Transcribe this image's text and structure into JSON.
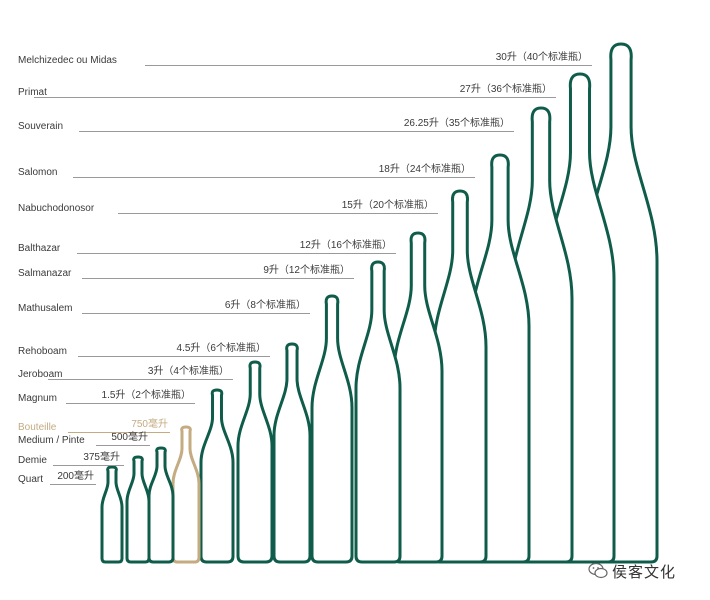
{
  "colors": {
    "bottle": "#0f5c4b",
    "highlight": "#c4ab82",
    "line": "#9a9a9a",
    "text": "#3a3a3a"
  },
  "bottles": [
    {
      "name": "Melchizedec ou Midas",
      "volume": "30升（40个标准瓶）",
      "highlight": false
    },
    {
      "name": "Primat",
      "volume": "27升（36个标准瓶）",
      "highlight": false
    },
    {
      "name": "Souverain",
      "volume": "26.25升（35个标准瓶）",
      "highlight": false
    },
    {
      "name": "Salomon",
      "volume": "18升（24个标准瓶）",
      "highlight": false
    },
    {
      "name": "Nabuchodonosor",
      "volume": "15升（20个标准瓶）",
      "highlight": false
    },
    {
      "name": "Balthazar",
      "volume": "12升（16个标准瓶）",
      "highlight": false
    },
    {
      "name": "Salmanazar",
      "volume": "9升（12个标准瓶）",
      "highlight": false
    },
    {
      "name": "Mathusalem",
      "volume": "6升（8个标准瓶）",
      "highlight": false
    },
    {
      "name": "Rehoboam",
      "volume": "4.5升（6个标准瓶）",
      "highlight": false
    },
    {
      "name": "Jeroboam",
      "volume": "3升（4个标准瓶）",
      "highlight": false
    },
    {
      "name": "Magnum",
      "volume": "1.5升（2个标准瓶）",
      "highlight": false
    },
    {
      "name": "Bouteille",
      "volume": "750毫升",
      "highlight": true
    },
    {
      "name": "Medium / Pinte",
      "volume": "500毫升",
      "highlight": false
    },
    {
      "name": "Demie",
      "volume": "375毫升",
      "highlight": false
    },
    {
      "name": "Quart",
      "volume": "200毫升",
      "highlight": false
    }
  ],
  "watermark": {
    "text": "侯客文化",
    "icon": "wechat-chat-icon"
  }
}
